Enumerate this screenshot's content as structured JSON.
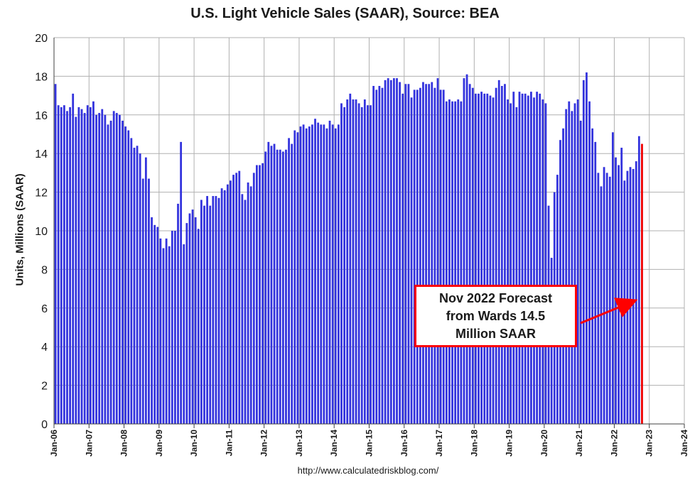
{
  "colors": {
    "bar": "#3333dd",
    "forecast": "#ee0000",
    "grid": "#b0b0b0"
  },
  "chart_data": {
    "type": "bar",
    "title": "U.S. Light Vehicle Sales (SAAR), Source: BEA",
    "ylabel": "Units, Millions (SAAR)",
    "xlabel": "",
    "ylim": [
      0,
      20
    ],
    "yticks": [
      0,
      2,
      4,
      6,
      8,
      10,
      12,
      14,
      16,
      18,
      20
    ],
    "grid": true,
    "x_tick_labels": [
      "Jan-06",
      "Jan-07",
      "Jan-08",
      "Jan-09",
      "Jan-10",
      "Jan-11",
      "Jan-12",
      "Jan-13",
      "Jan-14",
      "Jan-15",
      "Jan-16",
      "Jan-17",
      "Jan-18",
      "Jan-19",
      "Jan-20",
      "Jan-21",
      "Jan-22",
      "Jan-23",
      "Jan-24"
    ],
    "series": [
      {
        "period_start": "Jan-06",
        "period_end": "Oct-22",
        "values": [
          17.6,
          16.5,
          16.4,
          16.5,
          16.2,
          16.4,
          17.1,
          15.9,
          16.4,
          16.3,
          16.1,
          16.5,
          16.4,
          16.7,
          16.0,
          16.1,
          16.3,
          16.0,
          15.5,
          15.7,
          16.2,
          16.1,
          16.0,
          15.7,
          15.4,
          15.2,
          14.8,
          14.3,
          14.4,
          14.0,
          12.7,
          13.8,
          12.7,
          10.7,
          10.3,
          10.2,
          9.6,
          9.1,
          9.6,
          9.2,
          10.0,
          10.0,
          11.4,
          14.6,
          9.3,
          10.4,
          10.9,
          11.1,
          10.7,
          10.1,
          11.6,
          11.3,
          11.8,
          11.3,
          11.8,
          11.8,
          11.7,
          12.2,
          12.1,
          12.4,
          12.6,
          12.9,
          13.0,
          13.1,
          11.9,
          11.6,
          12.5,
          12.3,
          13.0,
          13.4,
          13.4,
          13.5,
          14.1,
          14.6,
          14.4,
          14.5,
          14.2,
          14.2,
          14.1,
          14.2,
          14.8,
          14.5,
          15.2,
          15.1,
          15.4,
          15.5,
          15.3,
          15.4,
          15.5,
          15.8,
          15.6,
          15.5,
          15.5,
          15.3,
          15.7,
          15.5,
          15.3,
          15.5,
          16.6,
          16.4,
          16.8,
          17.1,
          16.8,
          16.8,
          16.6,
          16.4,
          16.8,
          16.5,
          16.5,
          17.5,
          17.3,
          17.5,
          17.4,
          17.8,
          17.9,
          17.8,
          17.9,
          17.9,
          17.7,
          17.1,
          17.6,
          17.6,
          16.9,
          17.3,
          17.3,
          17.4,
          17.7,
          17.6,
          17.6,
          17.7,
          17.4,
          17.9,
          17.3,
          17.3,
          16.7,
          16.8,
          16.7,
          16.7,
          16.8,
          16.7,
          17.9,
          18.1,
          17.6,
          17.4,
          17.1,
          17.1,
          17.2,
          17.1,
          17.1,
          17.0,
          16.9,
          17.4,
          17.8,
          17.5,
          17.6,
          16.8,
          16.6,
          17.2,
          16.4,
          17.2,
          17.1,
          17.1,
          17.0,
          17.2,
          16.9,
          17.2,
          17.1,
          16.8,
          16.6,
          11.3,
          8.6,
          12.0,
          12.9,
          14.7,
          15.3,
          16.3,
          16.7,
          16.2,
          16.6,
          16.8,
          15.7,
          17.8,
          18.2,
          16.7,
          15.3,
          14.6,
          13.0,
          12.3,
          13.3,
          13.0,
          12.8,
          15.1,
          13.8,
          13.4,
          14.3,
          12.6,
          13.1,
          13.3,
          13.2,
          13.6,
          14.9
        ]
      },
      {
        "name": "Nov 2022 Forecast",
        "period": "Nov-22",
        "values": [
          14.5
        ]
      }
    ],
    "annotation": "Nov 2022 Forecast\nfrom Wards 14.5\nMillion SAAR"
  },
  "source_url": "http://www.calculatedriskblog.com/"
}
